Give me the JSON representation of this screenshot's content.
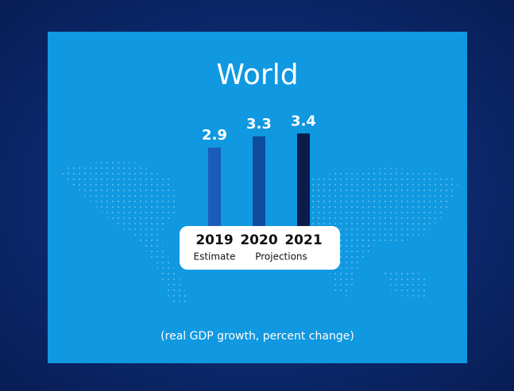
{
  "chart_data": {
    "type": "bar",
    "title": "World",
    "categories": [
      "2019",
      "2020",
      "2021"
    ],
    "values": [
      2.9,
      3.3,
      3.4
    ],
    "colors": [
      "#1b5cb8",
      "#0f4c9e",
      "#0b1c4d"
    ],
    "category_notes": [
      "Estimate",
      "Projections"
    ],
    "note": "(real GDP growth, percent change)"
  }
}
